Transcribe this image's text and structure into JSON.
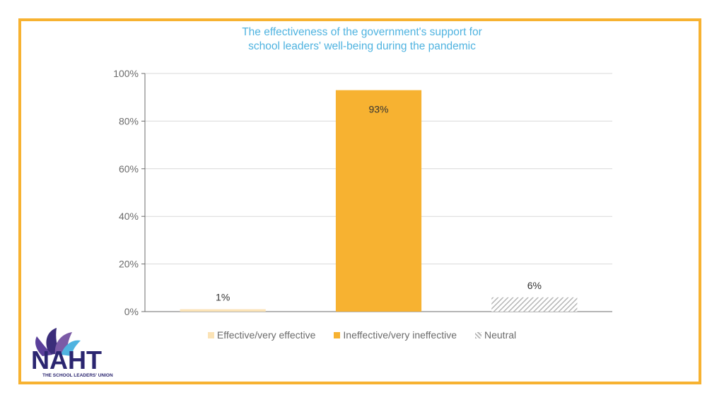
{
  "chart_data": {
    "type": "bar",
    "title": [
      "The effectiveness of the government's support for",
      "school leaders' well-being during the pandemic"
    ],
    "categories": [
      "Effective/very effective",
      "Ineffective/very ineffective",
      "Neutral"
    ],
    "values": [
      1,
      93,
      6
    ],
    "value_labels": [
      "1%",
      "93%",
      "6%"
    ],
    "colors": [
      "#fbe3b6",
      "#f7b231",
      "#bdbdbd"
    ],
    "patterns": [
      "solid",
      "solid",
      "hatched"
    ],
    "ylim": [
      0,
      100
    ],
    "yticks": [
      0,
      20,
      40,
      60,
      80,
      100
    ],
    "ytick_labels": [
      "0%",
      "20%",
      "40%",
      "60%",
      "80%",
      "100%"
    ],
    "grid": true,
    "legend_position": "bottom"
  },
  "logo": {
    "name": "NAHT",
    "tagline": "THE SCHOOL LEADERS' UNION"
  }
}
